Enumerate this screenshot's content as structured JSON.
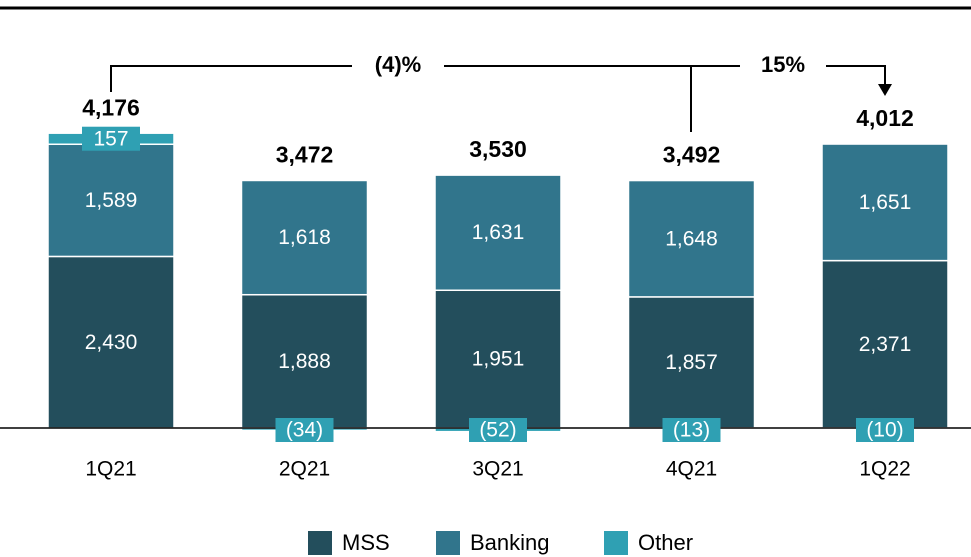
{
  "chart_data": {
    "type": "stacked_bar",
    "categories": [
      "1Q21",
      "2Q21",
      "3Q21",
      "4Q21",
      "1Q22"
    ],
    "series": [
      {
        "name": "MSS",
        "color": "#234e5c",
        "values": [
          2430,
          1888,
          1951,
          1857,
          2371
        ],
        "value_labels": [
          "2,430",
          "1,888",
          "1,951",
          "1,857",
          "2,371"
        ]
      },
      {
        "name": "Banking",
        "color": "#31758c",
        "values": [
          1589,
          1618,
          1631,
          1648,
          1651
        ],
        "value_labels": [
          "1,589",
          "1,618",
          "1,631",
          "1,648",
          "1,651"
        ]
      },
      {
        "name": "Other",
        "color": "#2fa0b3",
        "values": [
          157,
          -34,
          -52,
          -13,
          -10
        ],
        "value_labels": [
          "157",
          "(34)",
          "(52)",
          "(13)",
          "(10)"
        ]
      }
    ],
    "totals": {
      "values": [
        4176,
        3472,
        3530,
        3492,
        4012
      ],
      "value_labels": [
        "4,176",
        "3,472",
        "3,530",
        "3,492",
        "4,012"
      ]
    },
    "annotations": [
      "(4)%",
      "15%"
    ]
  }
}
